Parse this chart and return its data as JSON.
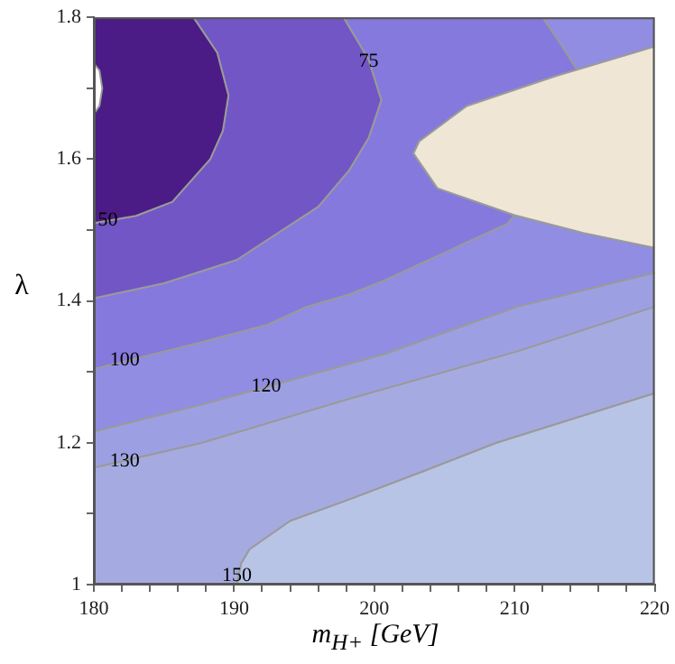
{
  "chart_data": {
    "type": "area",
    "xlabel": "m$_{H+}$ [GeV]",
    "ylabel": "λ",
    "xlim": [
      180,
      220
    ],
    "ylim": [
      1.0,
      1.8
    ],
    "xticks": [
      180,
      {
        "value": 182,
        "label": null
      },
      {
        "value": 184,
        "label": null
      },
      {
        "value": 186,
        "label": null
      },
      {
        "value": 188,
        "label": null
      },
      190,
      {
        "value": 192,
        "label": null
      },
      {
        "value": 194,
        "label": null
      },
      {
        "value": 196,
        "label": null
      },
      {
        "value": 198,
        "label": null
      },
      200,
      {
        "value": 202,
        "label": null
      },
      {
        "value": 204,
        "label": null
      },
      {
        "value": 206,
        "label": null
      },
      {
        "value": 208,
        "label": null
      },
      210,
      {
        "value": 212,
        "label": null
      },
      {
        "value": 214,
        "label": null
      },
      {
        "value": 216,
        "label": null
      },
      {
        "value": 218,
        "label": null
      },
      220
    ],
    "yticks": [
      1.0,
      {
        "value": 1.1,
        "label": null
      },
      1.2,
      {
        "value": 1.3,
        "label": null
      },
      1.4,
      {
        "value": 1.5,
        "label": null
      },
      1.6,
      {
        "value": 1.7,
        "label": null
      },
      1.8
    ],
    "grid": false,
    "legend": false,
    "marker": "none",
    "series": [
      {
        "color": "#b8c4e6",
        "x": [
          190.2,
          190.5,
          191.1,
          194.0,
          198.2,
          203.5,
          208.7,
          220,
          220,
          190.2
        ],
        "values": [
          1.0,
          1.03,
          1.05,
          1.09,
          1.12,
          1.16,
          1.2,
          1.27,
          1.0,
          1.0
        ]
      },
      {
        "color": "#a5abe1",
        "x": [
          180,
          187.7,
          198.2,
          210.2,
          220,
          220,
          208.7,
          203.5,
          198.2,
          194.0,
          191.1,
          190.5,
          190.2,
          180,
          180
        ],
        "values": [
          1.165,
          1.2,
          1.262,
          1.329,
          1.392,
          1.27,
          1.2,
          1.16,
          1.12,
          1.09,
          1.05,
          1.03,
          1.0,
          1.0,
          1.165
        ]
      },
      {
        "color": "#9ca0e3",
        "x": [
          180,
          187.7,
          192.3,
          200.7,
          210.2,
          220,
          220,
          210.2,
          198.2,
          187.7,
          180,
          180
        ],
        "values": [
          1.216,
          1.254,
          1.279,
          1.325,
          1.392,
          1.44,
          1.392,
          1.329,
          1.262,
          1.2,
          1.165,
          1.216
        ]
      },
      {
        "color": "#908de3",
        "x": [
          180,
          187.7,
          192.3,
          195.2,
          198.2,
          200.7,
          209.5,
          210.0,
          214.9,
          220,
          220,
          210.2,
          200.7,
          192.3,
          187.7,
          180,
          180
        ],
        "values": [
          1.304,
          1.342,
          1.366,
          1.392,
          1.409,
          1.429,
          1.509,
          1.521,
          1.496,
          1.475,
          1.44,
          1.392,
          1.325,
          1.279,
          1.254,
          1.216,
          1.304
        ]
      },
      {
        "color": "#908de3",
        "x": [
          212.0,
          213.2,
          214.1,
          214.5,
          220,
          220,
          212.0
        ],
        "values": [
          1.8,
          1.765,
          1.737,
          1.725,
          1.759,
          1.8,
          1.8
        ]
      },
      {
        "color": "#8579dd",
        "x": [
          197.8,
          199.6,
          200.5,
          199.6,
          198.2,
          196.0,
          190.2,
          185,
          180,
          180,
          187.7,
          192.3,
          195.2,
          198.2,
          200.7,
          209.5,
          210.0,
          204.5,
          202.8,
          203.2,
          206.6,
          212.9,
          214.5,
          214.1,
          213.2,
          212.0,
          197.8
        ],
        "values": [
          1.8,
          1.74,
          1.683,
          1.63,
          1.584,
          1.533,
          1.458,
          1.425,
          1.404,
          1.304,
          1.342,
          1.366,
          1.392,
          1.409,
          1.429,
          1.509,
          1.521,
          1.559,
          1.608,
          1.625,
          1.675,
          1.717,
          1.725,
          1.737,
          1.765,
          1.8,
          1.8
        ]
      },
      {
        "color": "#7256c6",
        "x": [
          187.1,
          188.8,
          189.6,
          189.2,
          188.3,
          185.6,
          183,
          180,
          180,
          185,
          190.2,
          196.0,
          198.2,
          199.6,
          200.5,
          199.6,
          197.8,
          187.1
        ],
        "values": [
          1.8,
          1.75,
          1.69,
          1.64,
          1.6,
          1.54,
          1.52,
          1.51,
          1.404,
          1.425,
          1.458,
          1.533,
          1.584,
          1.63,
          1.683,
          1.74,
          1.8,
          1.8
        ]
      },
      {
        "color": "#4b1b86",
        "x": [
          187.1,
          188.8,
          189.6,
          189.2,
          188.3,
          185.6,
          183,
          180,
          180,
          187.1
        ],
        "values": [
          1.8,
          1.75,
          1.69,
          1.64,
          1.6,
          1.54,
          1.52,
          1.51,
          1.8,
          1.8
        ]
      },
      {
        "color": "#efe6d6",
        "x": [
          220,
          212.9,
          206.6,
          203.2,
          202.8,
          204.5,
          210.0,
          214.9,
          220,
          220
        ],
        "values": [
          1.759,
          1.717,
          1.675,
          1.625,
          1.608,
          1.559,
          1.521,
          1.496,
          1.475,
          1.759
        ]
      },
      {
        "color": "#ffffff",
        "x": [
          180,
          180.4,
          180.6,
          180.4,
          180,
          180
        ],
        "values": [
          1.735,
          1.725,
          1.7,
          1.675,
          1.664,
          1.735
        ]
      }
    ],
    "annotations": [
      {
        "text": "50",
        "x": 181.0,
        "y": 1.514
      },
      {
        "text": "75",
        "x": 199.6,
        "y": 1.738
      },
      {
        "text": "100",
        "x": 182.2,
        "y": 1.316
      },
      {
        "text": "120",
        "x": 192.3,
        "y": 1.279
      },
      {
        "text": "130",
        "x": 182.2,
        "y": 1.174
      },
      {
        "text": "150",
        "x": 190.2,
        "y": 1.012
      }
    ]
  }
}
